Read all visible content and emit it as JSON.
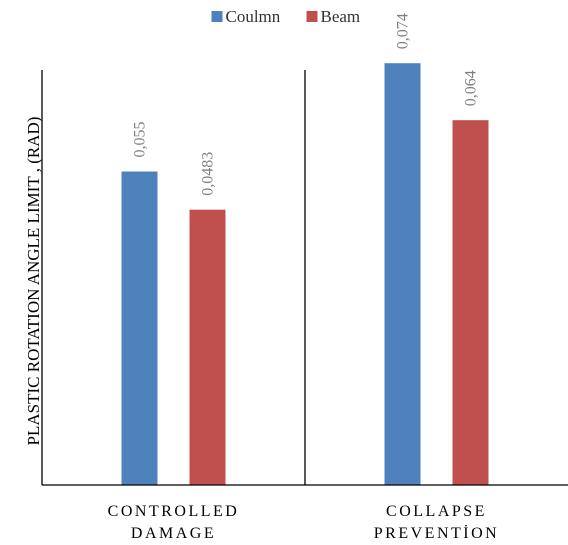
{
  "chart_data": {
    "type": "bar",
    "categories": [
      [
        "CONTROLLED",
        "DAMAGE"
      ],
      [
        "COLLAPSE",
        "PREVENTİON"
      ]
    ],
    "series": [
      {
        "name": "Coulmn",
        "color": "#4f81bd",
        "values": [
          0.055,
          0.074
        ],
        "labels": [
          "0,055",
          "0,074"
        ]
      },
      {
        "name": "Beam",
        "color": "#c0504d",
        "values": [
          0.0483,
          0.064
        ],
        "labels": [
          "0,0483",
          "0,064"
        ]
      }
    ],
    "ylabel": "PLASTIC ROTATION ANGLE LIMIT , (RAD)",
    "ylim": [
      0,
      0.08
    ],
    "legend": "top-center",
    "grid": false,
    "category_divider": true
  }
}
